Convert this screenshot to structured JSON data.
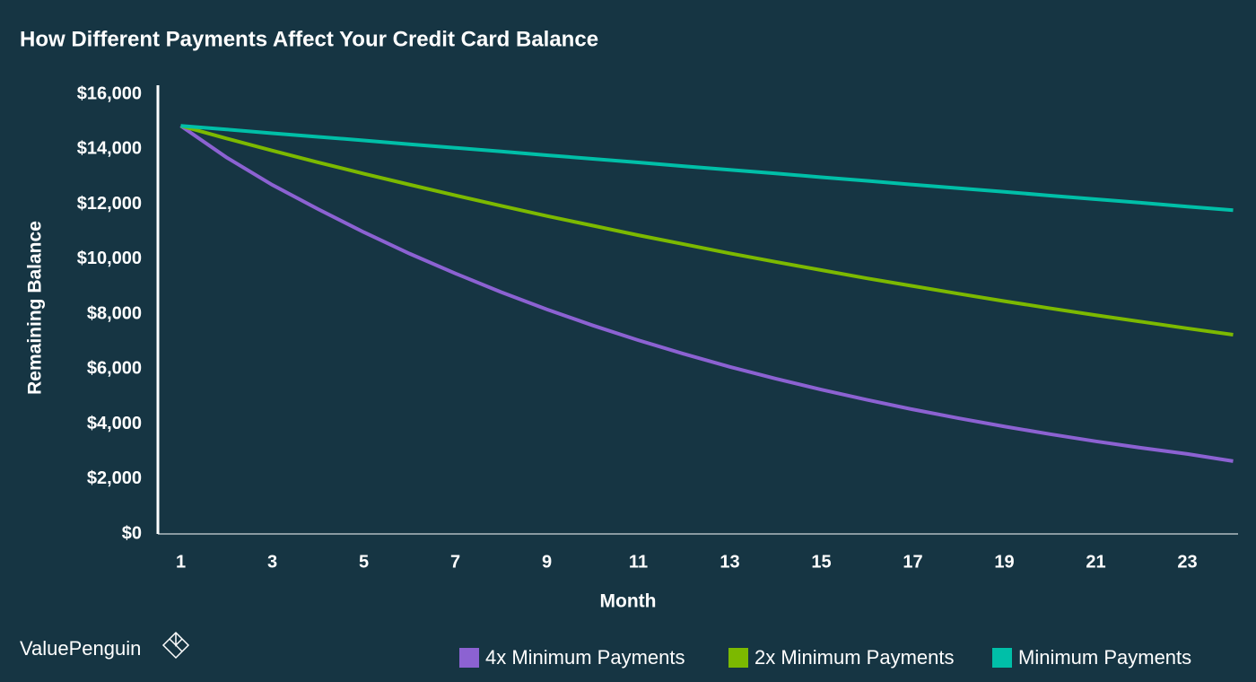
{
  "chart_data": {
    "type": "line",
    "title": "How Different Payments Affect Your Credit Card Balance",
    "y_label": "Remaining Balance",
    "x_label": "Month",
    "brand": "ValuePenguin",
    "x": [
      1,
      2,
      3,
      4,
      5,
      6,
      7,
      8,
      9,
      10,
      11,
      12,
      13,
      14,
      15,
      16,
      17,
      18,
      19,
      20,
      21,
      22,
      23,
      24
    ],
    "series": [
      {
        "name": "4x Minimum Payments",
        "color": "#8c62d2",
        "values": [
          14850,
          13700,
          12700,
          11820,
          10980,
          10200,
          9480,
          8800,
          8170,
          7590,
          7050,
          6550,
          6080,
          5650,
          5250,
          4880,
          4530,
          4210,
          3910,
          3630,
          3370,
          3130,
          2910,
          2650
        ]
      },
      {
        "name": "2x Minimum Payments",
        "color": "#7cb900",
        "values": [
          14850,
          14390,
          13950,
          13520,
          13110,
          12710,
          12320,
          11940,
          11570,
          11220,
          10870,
          10540,
          10210,
          9900,
          9600,
          9300,
          9020,
          8740,
          8470,
          8210,
          7960,
          7720,
          7480,
          7250
        ]
      },
      {
        "name": "Minimum Payments",
        "color": "#00bfa8",
        "values": [
          14850,
          14720,
          14580,
          14450,
          14320,
          14180,
          14050,
          13920,
          13780,
          13650,
          13520,
          13380,
          13250,
          13120,
          12980,
          12850,
          12710,
          12580,
          12450,
          12310,
          12180,
          12050,
          11910,
          11780
        ]
      }
    ],
    "xlim": [
      0.5,
      24.5
    ],
    "xticks": [
      1,
      3,
      5,
      7,
      9,
      11,
      13,
      15,
      17,
      19,
      21,
      23
    ],
    "ylim": [
      0,
      16000
    ],
    "yticks": [
      {
        "value": 0,
        "label": "$0"
      },
      {
        "value": 2000,
        "label": "$2,000"
      },
      {
        "value": 4000,
        "label": "$4,000"
      },
      {
        "value": 6000,
        "label": "$6,000"
      },
      {
        "value": 8000,
        "label": "$8,000"
      },
      {
        "value": 10000,
        "label": "$10,000"
      },
      {
        "value": 12000,
        "label": "$12,000"
      },
      {
        "value": 14000,
        "label": "$14,000"
      },
      {
        "value": 16000,
        "label": "$16,000"
      }
    ],
    "grid": false,
    "legend": "bottom-right"
  }
}
